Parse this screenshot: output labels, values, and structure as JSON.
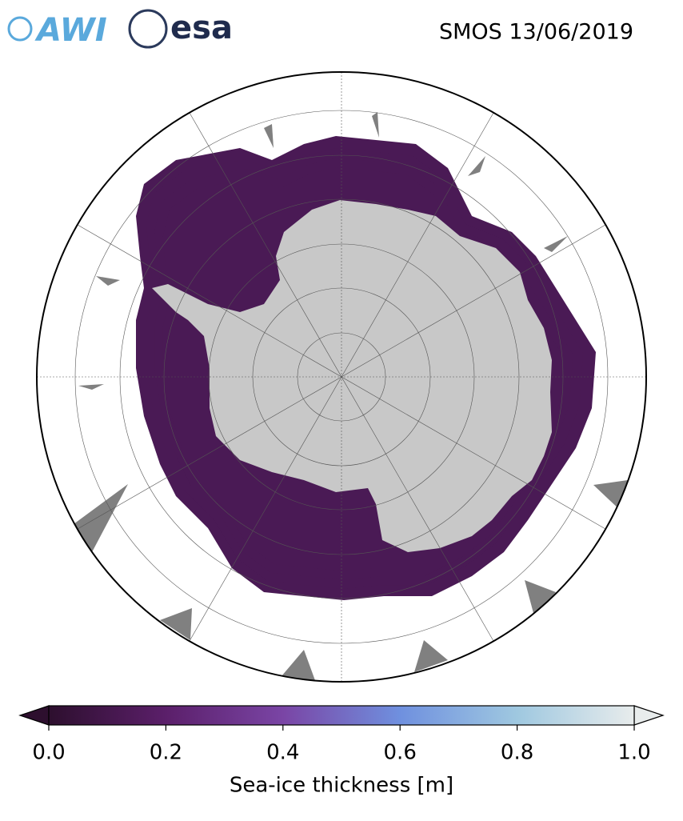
{
  "header": {
    "logos": [
      "AWI",
      "esa"
    ],
    "title": "SMOS 13/06/2019"
  },
  "colorbar": {
    "label": "Sea-ice thickness [m]",
    "lim": [
      0,
      1
    ],
    "ticks": [
      {
        "value": 0,
        "label": "0.0"
      },
      0.2,
      0.4,
      0.6,
      0.8,
      {
        "value": 1,
        "label": "1.0"
      }
    ],
    "colors": [
      "#2d0f2e",
      "#5b1f6a",
      "#7a45a5",
      "#6f90df",
      "#9fc8e0",
      "#e8ecec"
    ]
  }
}
